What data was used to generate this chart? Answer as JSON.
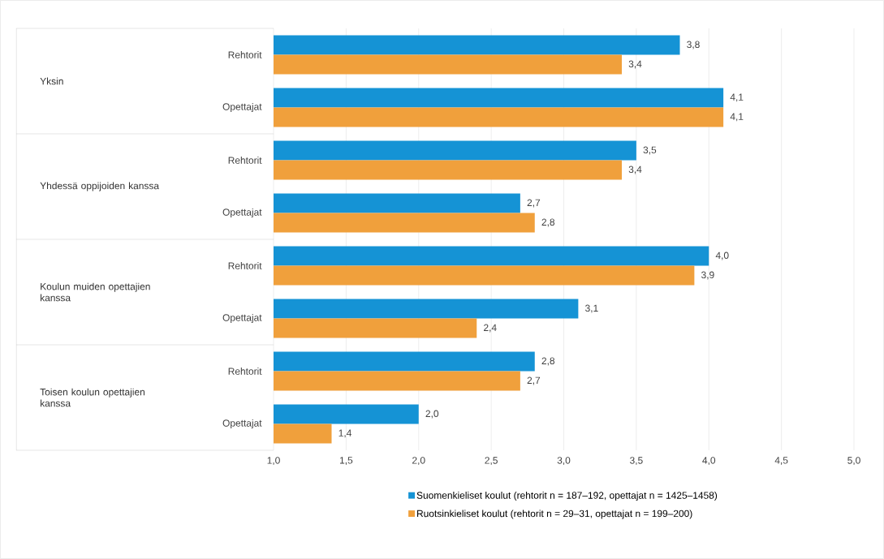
{
  "chart_data": {
    "type": "bar",
    "orientation": "horizontal",
    "categories": [
      "Rehtorit",
      "Opettajat",
      "Rehtorit",
      "Opettajat",
      "Rehtorit",
      "Opettajat",
      "Rehtorit",
      "Opettajat"
    ],
    "annotations": [
      "Yksin",
      "Yhdessä oppijoiden kanssa",
      "Koulun muiden opettajien kanssa",
      "Toisen koulun opettajien kanssa"
    ],
    "series": [
      {
        "name": "Suomenkieliset koulut (rehtorit n = 187–192, opettajat n = 1425–1458)",
        "color": "#1593d5",
        "values": [
          3.8,
          4.1,
          3.5,
          2.7,
          4.0,
          3.1,
          2.8,
          2.0
        ],
        "value_labels": [
          "3,8",
          "4,1",
          "3,5",
          "2,7",
          "4,0",
          "3,1",
          "2,8",
          "2,0"
        ]
      },
      {
        "name": "Ruotsinkieliset koulut (rehtorit n = 29–31, opettajat n = 199–200)",
        "color": "#f0a03c",
        "values": [
          3.4,
          4.1,
          3.4,
          2.8,
          3.9,
          2.4,
          2.7,
          1.4
        ],
        "value_labels": [
          "3,4",
          "4,1",
          "3,4",
          "2,8",
          "3,9",
          "2,4",
          "2,7",
          "1,4"
        ]
      }
    ],
    "xlim": [
      1,
      5
    ],
    "xticks": [
      {
        "value": 1,
        "label": "1,0"
      },
      {
        "value": 1.5,
        "label": "1,5"
      },
      {
        "value": 2,
        "label": "2,0"
      },
      {
        "value": 2.5,
        "label": "2,5"
      },
      {
        "value": 3,
        "label": "3,0"
      },
      {
        "value": 3.5,
        "label": "3,5"
      },
      {
        "value": 4,
        "label": "4,0"
      },
      {
        "value": 4.5,
        "label": "4,5"
      },
      {
        "value": 5,
        "label": "5,0"
      }
    ],
    "grid": "x",
    "legend": "bottom"
  }
}
